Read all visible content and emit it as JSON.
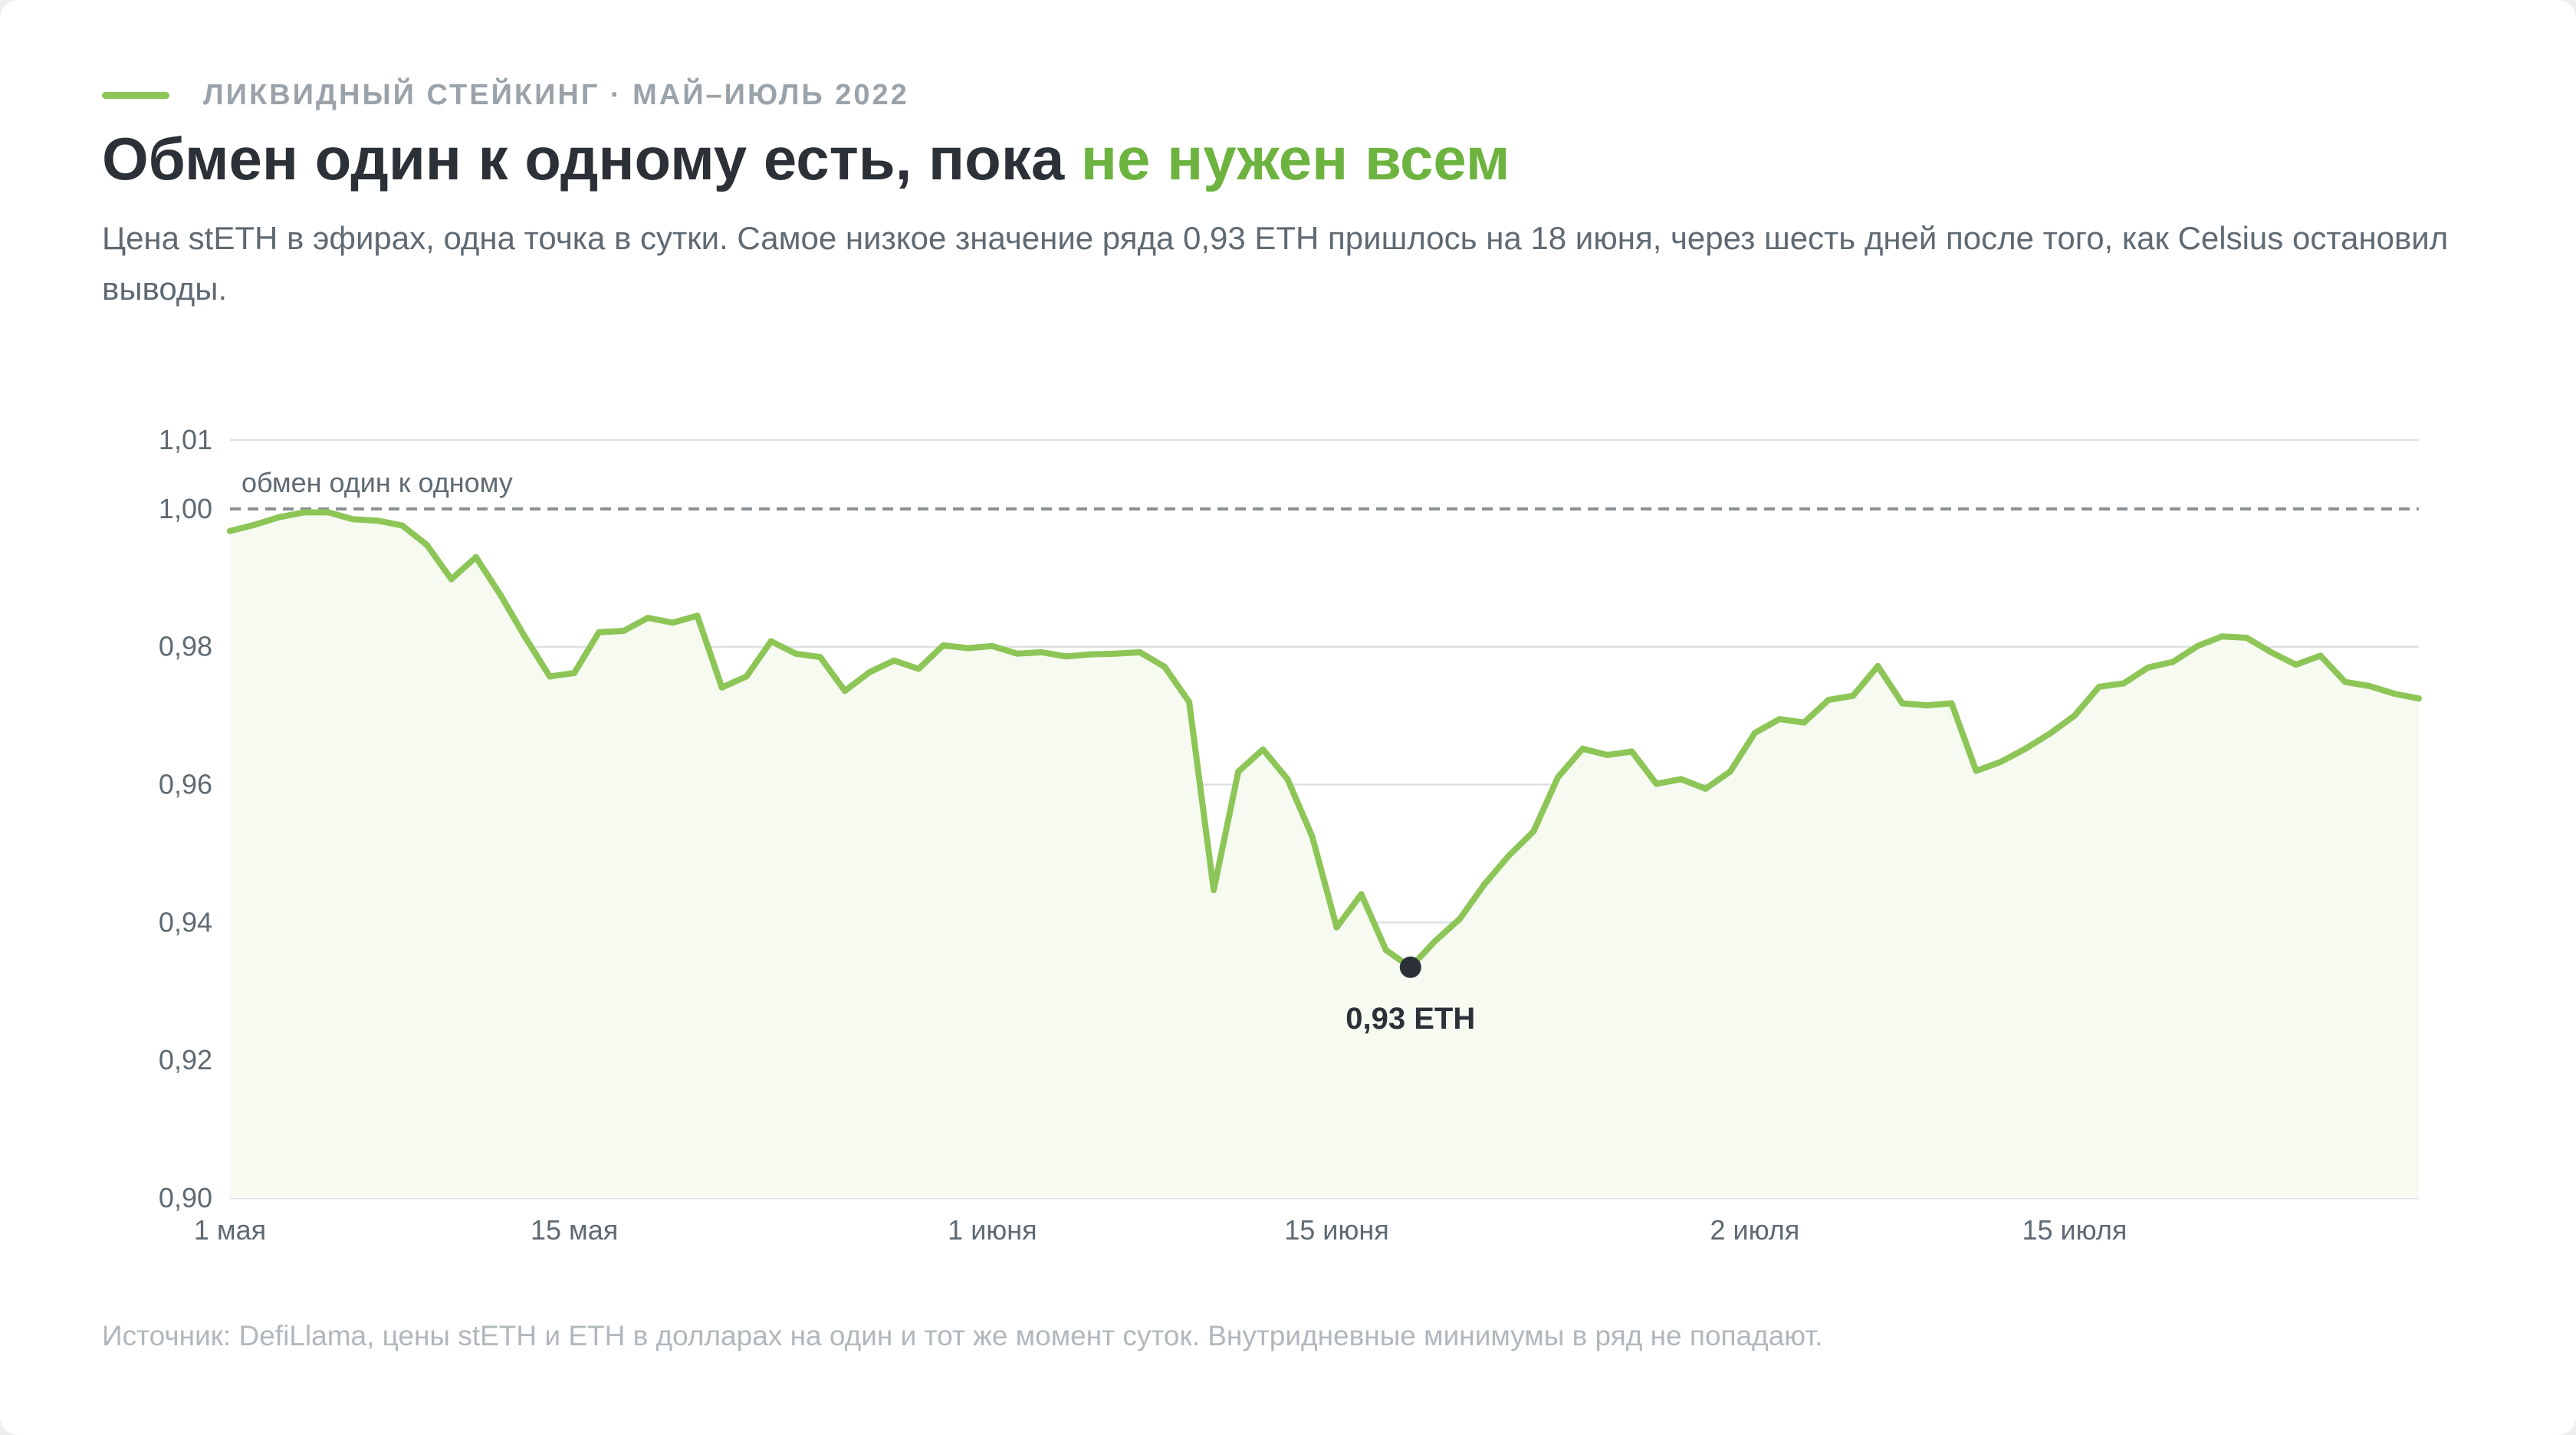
{
  "header": {
    "eyebrow": "ЛИКВИДНЫЙ СТЕЙКИНГ · МАЙ–ИЮЛЬ 2022",
    "title_main": "Обмен один к одному есть, пока ",
    "title_accent": "не нужен всем",
    "subtitle": "Цена stETH в эфирах, одна точка в сутки. Самое низкое значение ряда 0,93 ETH пришлось на 18 июня, через шесть дней после того, как Celsius остановил выводы."
  },
  "colors": {
    "line": "#8dc657",
    "accent": "#6db33f",
    "area": "#f6faf1",
    "grid": "#dde1e4",
    "peg": "#8a8f94",
    "marker": "#2b3136"
  },
  "chart_data": {
    "type": "area",
    "ylim": [
      0.9,
      1.01
    ],
    "y_ticks": [
      {
        "v": 1.01,
        "label": "1,01"
      },
      {
        "v": 1.0,
        "label": "1,00"
      },
      {
        "v": 0.98,
        "label": "0,98"
      },
      {
        "v": 0.96,
        "label": "0,96"
      },
      {
        "v": 0.94,
        "label": "0,94"
      },
      {
        "v": 0.92,
        "label": "0,92"
      },
      {
        "v": 0.9,
        "label": "0,90"
      }
    ],
    "x_ticks": [
      {
        "day": 1,
        "label": "1 мая"
      },
      {
        "day": 15,
        "label": "15 мая"
      },
      {
        "day": 32,
        "label": "1 июня"
      },
      {
        "day": 46,
        "label": "15 июня"
      },
      {
        "day": 63,
        "label": "2 июля"
      },
      {
        "day": 76,
        "label": "15 июля"
      }
    ],
    "reference_line": {
      "y": 1.0,
      "label": "обмен один к одному"
    },
    "min_point": {
      "day": 49,
      "y": 0.9335,
      "label": "0,93 ETH"
    },
    "x": [
      1,
      2,
      3,
      4,
      5,
      6,
      7,
      8,
      9,
      10,
      11,
      12,
      13,
      14,
      15,
      16,
      17,
      18,
      19,
      20,
      21,
      22,
      23,
      24,
      25,
      26,
      27,
      28,
      29,
      30,
      31,
      32,
      33,
      34,
      35,
      36,
      37,
      38,
      39,
      40,
      41,
      42,
      43,
      44,
      45,
      46,
      47,
      48,
      49,
      50,
      51,
      52,
      53,
      54,
      55,
      56,
      57,
      58,
      59,
      60,
      61,
      62,
      63,
      64,
      65,
      66,
      67,
      68,
      69,
      70,
      71,
      72,
      73,
      74,
      75,
      76,
      77,
      78,
      79,
      80,
      81,
      82,
      83,
      84,
      85,
      86,
      87,
      88,
      89,
      90
    ],
    "values": [
      0.9968,
      0.9977,
      0.9988,
      0.9995,
      0.9995,
      0.9985,
      0.9983,
      0.9976,
      0.9948,
      0.9898,
      0.993,
      0.9875,
      0.9814,
      0.9757,
      0.9762,
      0.9821,
      0.9823,
      0.9842,
      0.9835,
      0.9845,
      0.9741,
      0.9757,
      0.9808,
      0.979,
      0.9785,
      0.9736,
      0.9763,
      0.978,
      0.9768,
      0.9802,
      0.9798,
      0.9801,
      0.979,
      0.9792,
      0.9786,
      0.9789,
      0.979,
      0.9792,
      0.9771,
      0.972,
      0.9447,
      0.9619,
      0.9651,
      0.9608,
      0.9525,
      0.9393,
      0.9441,
      0.936,
      0.9335,
      0.9373,
      0.9405,
      0.9455,
      0.9497,
      0.9532,
      0.9611,
      0.9652,
      0.9643,
      0.9648,
      0.9601,
      0.9608,
      0.9594,
      0.9619,
      0.9675,
      0.9695,
      0.969,
      0.9723,
      0.9729,
      0.9772,
      0.9718,
      0.9715,
      0.9718,
      0.962,
      0.9633,
      0.9652,
      0.9674,
      0.97,
      0.9742,
      0.9747,
      0.977,
      0.9778,
      0.9801,
      0.9815,
      0.9813,
      0.9792,
      0.9774,
      0.9787,
      0.9749,
      0.9743,
      0.9732,
      0.9725
    ]
  },
  "footer": {
    "source": "Источник: DefiLlama, цены stETH и ETH в долларах на один и тот же момент суток. Внутридневные минимумы в ряд не попадают."
  }
}
